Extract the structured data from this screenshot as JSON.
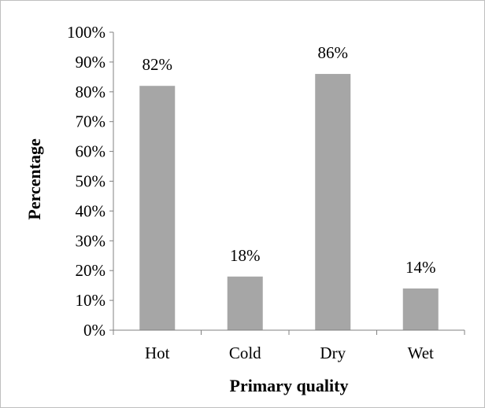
{
  "chart_data": {
    "type": "bar",
    "title": "",
    "xlabel": "Primary quality",
    "ylabel": "Percentage",
    "categories": [
      "Hot",
      "Cold",
      "Dry",
      "Wet"
    ],
    "values": [
      82,
      18,
      86,
      14
    ],
    "data_labels": [
      "82%",
      "18%",
      "86%",
      "14%"
    ],
    "ylim": [
      0,
      100
    ],
    "yticks": [
      0,
      10,
      20,
      30,
      40,
      50,
      60,
      70,
      80,
      90,
      100
    ],
    "ytick_labels": [
      "0%",
      "10%",
      "20%",
      "30%",
      "40%",
      "50%",
      "60%",
      "70%",
      "80%",
      "90%",
      "100%"
    ],
    "grid": false,
    "legend": "none",
    "bar_color": "#a6a6a6",
    "axis_color": "#808080"
  }
}
